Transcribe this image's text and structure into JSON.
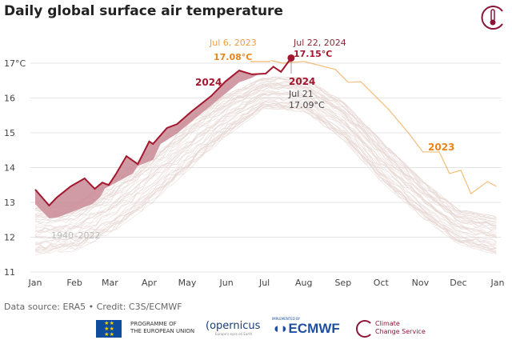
{
  "title": "Daily global surface air temperature",
  "footer": {
    "source": "Data source: ERA5 • Credit: C3S/ECMWF",
    "logos": {
      "eu": "PROGRAMME OF THE EUROPEAN UNION",
      "eu_line1": "PROGRAMME OF",
      "eu_line2": "THE EUROPEAN UNION",
      "copernicus": "opernicus",
      "copernicus_tagline": "Europe's eyes on Earth",
      "ecmwf_small": "IMPLEMENTED BY",
      "ecmwf": "ECMWF",
      "c3s_line1": "Climate",
      "c3s_line2": "Change Service"
    }
  },
  "chart_data": {
    "type": "line",
    "title": "Daily global surface air temperature",
    "ylim": [
      11,
      17
    ],
    "yticks": [
      11,
      12,
      13,
      14,
      15,
      16,
      17
    ],
    "ytick_labels": [
      "11",
      "12",
      "13",
      "14",
      "15",
      "16",
      "17°C"
    ],
    "xtick_labels": [
      "Jan",
      "Feb",
      "Mar",
      "Apr",
      "May",
      "Jun",
      "Jul",
      "Aug",
      "Sep",
      "Oct",
      "Nov",
      "Dec",
      "Jan"
    ],
    "grid": "horizontal",
    "colors": {
      "s2024": "#a3172e",
      "s2023": "#f0a040",
      "s2023_label": "#e8861c",
      "fill": "#c98a95",
      "climatology": "#e6d6d2"
    },
    "series": [
      {
        "name": "2024",
        "x": [
          "01-01",
          "01-12",
          "01-18",
          "01-29",
          "02-09",
          "02-17",
          "02-23",
          "02-28",
          "03-06",
          "03-14",
          "03-23",
          "04-01",
          "04-04",
          "04-15",
          "04-23",
          "05-04",
          "05-20",
          "05-31",
          "06-11",
          "06-21",
          "07-02",
          "07-08",
          "07-14",
          "07-22"
        ],
        "y": [
          13.37,
          12.91,
          13.14,
          13.46,
          13.69,
          13.39,
          13.57,
          13.5,
          13.83,
          14.33,
          14.1,
          14.75,
          14.68,
          15.14,
          15.25,
          15.6,
          16.06,
          16.47,
          16.79,
          16.68,
          16.7,
          16.9,
          16.75,
          17.15
        ]
      },
      {
        "name": "2023",
        "x": [
          "01-01",
          "01-12",
          "01-18",
          "02-02",
          "02-15",
          "02-21",
          "02-25",
          "03-19",
          "03-23",
          "04-04",
          "04-10",
          "04-23",
          "05-06",
          "06-11",
          "06-21",
          "06-30",
          "07-06",
          "07-15",
          "08-01",
          "08-26",
          "09-05",
          "09-15",
          "10-07",
          "10-23",
          "11-03",
          "11-16",
          "11-24",
          "12-03",
          "12-11",
          "12-24",
          "12-31"
        ],
        "y": [
          12.95,
          12.54,
          12.56,
          12.77,
          12.95,
          13.14,
          13.4,
          13.83,
          14.05,
          14.22,
          14.68,
          14.98,
          15.37,
          16.45,
          16.58,
          16.75,
          17.08,
          17.0,
          17.05,
          16.82,
          16.45,
          16.47,
          15.67,
          14.98,
          14.45,
          14.45,
          13.83,
          13.92,
          13.25,
          13.6,
          13.46
        ]
      },
      {
        "name": "1940–2022",
        "type": "envelope",
        "x": [
          "01-01",
          "02-01",
          "03-01",
          "04-01",
          "05-01",
          "06-01",
          "07-01",
          "08-01",
          "09-01",
          "10-01",
          "11-01",
          "12-01",
          "12-31"
        ],
        "upper": [
          12.9,
          13.0,
          13.6,
          14.5,
          15.4,
          16.1,
          16.6,
          16.6,
          15.9,
          14.8,
          13.7,
          12.8,
          12.6
        ],
        "lower": [
          11.5,
          11.6,
          12.1,
          12.9,
          13.9,
          14.9,
          15.7,
          15.6,
          14.8,
          13.6,
          12.6,
          11.8,
          11.5
        ]
      }
    ],
    "annotations": {
      "record_2023_date": "Jul 6, 2023",
      "record_2023_value": "17.08°C",
      "record_2024_date": "Jul 22, 2024",
      "record_2024_value": "17.15°C",
      "prev_2024_year": "2024",
      "prev_2024_date": "Jul 21",
      "prev_2024_value": "17.09°C",
      "label_2024": "2024",
      "label_2023": "2023",
      "label_climatology": "1940–2022"
    }
  }
}
